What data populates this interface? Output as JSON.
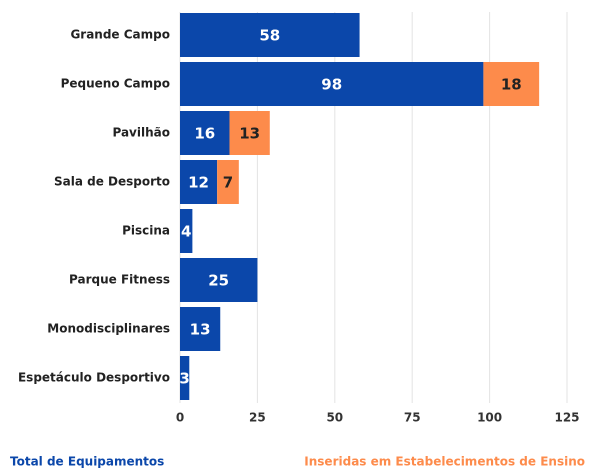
{
  "chart_data": {
    "type": "stacked_barh",
    "categories": [
      "Grande Campo",
      "Pequeno Campo",
      "Pavilhão",
      "Sala de Desporto",
      "Piscina",
      "Parque Fitness",
      "Monodisciplinares",
      "Espetáculo Desportivo"
    ],
    "series": [
      {
        "name": "Total de Equipamentos",
        "color": "#0b47aa",
        "values": [
          58,
          98,
          16,
          12,
          4,
          25,
          13,
          3
        ]
      },
      {
        "name": "Inseridas em Estabelecimentos de Ensino",
        "color": "#fd8b4b",
        "values": [
          null,
          18,
          13,
          7,
          null,
          null,
          null,
          null
        ]
      }
    ],
    "xlim": [
      0,
      125
    ],
    "xticks": [
      0,
      25,
      50,
      75,
      100,
      125
    ],
    "grid": true
  }
}
